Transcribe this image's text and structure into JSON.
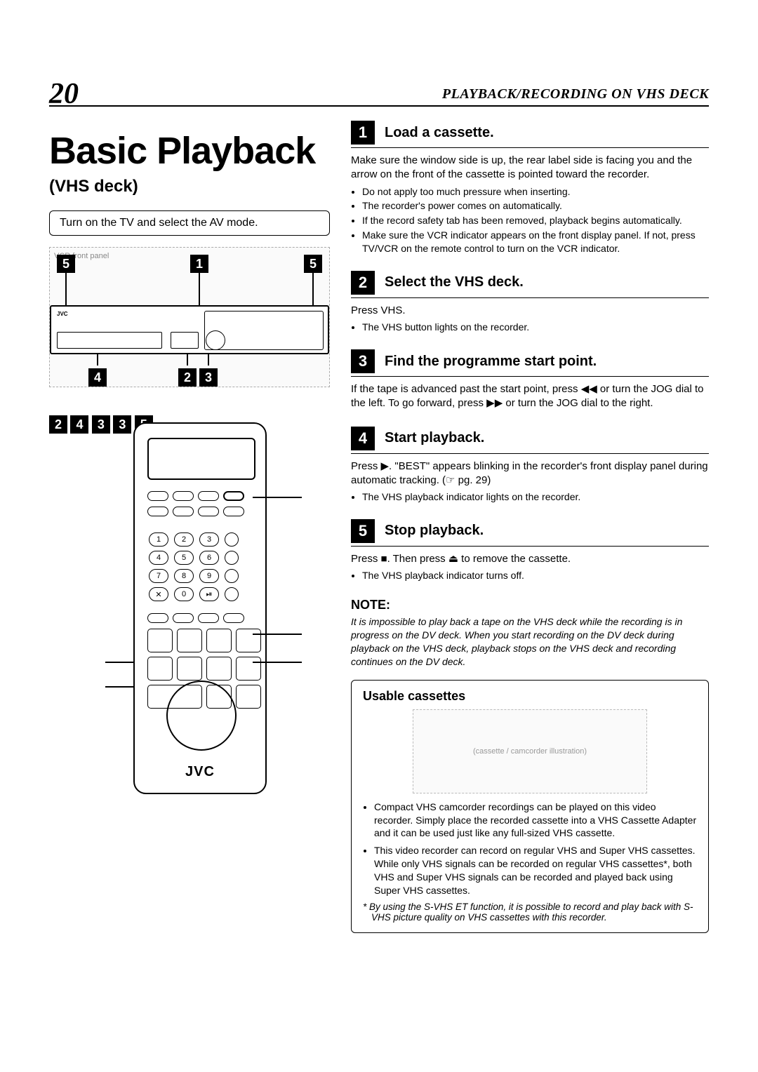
{
  "header": {
    "page_number": "20",
    "section": "PLAYBACK/RECORDING ON VHS DECK"
  },
  "left": {
    "title": "Basic Playback",
    "subtitle": "(VHS deck)",
    "instruction_box": "Turn on the TV and select the AV mode.",
    "vcr_callouts_top": [
      "5",
      "1",
      "5"
    ],
    "vcr_callouts_bottom": [
      "4",
      "2",
      "3"
    ],
    "remote_callouts_right": [
      "2",
      "4",
      "3"
    ],
    "remote_callouts_left": [
      "3",
      "5"
    ],
    "remote_brand": "JVC",
    "keypad": [
      [
        "1",
        "2",
        "3"
      ],
      [
        "4",
        "5",
        "6"
      ],
      [
        "7",
        "8",
        "9"
      ],
      [
        "✕",
        "0",
        "⏯"
      ]
    ]
  },
  "steps": [
    {
      "num": "1",
      "title": "Load a cassette.",
      "body": "Make sure the window side is up, the rear label side is facing you and the arrow on the front of the cassette is pointed toward the recorder.",
      "bullets": [
        "Do not apply too much pressure when inserting.",
        "The recorder's power comes on automatically.",
        "If the record safety tab has been removed, playback begins automatically.",
        "Make sure the VCR indicator appears on the front display panel. If not, press TV/VCR on the remote control to turn on the VCR indicator."
      ]
    },
    {
      "num": "2",
      "title": "Select the VHS deck.",
      "body": "Press VHS.",
      "bullets": [
        "The VHS button lights on the recorder."
      ]
    },
    {
      "num": "3",
      "title": "Find the programme start point.",
      "body": "If the tape is advanced past the start point, press ◀◀ or turn the JOG dial to the left. To go forward, press ▶▶ or turn the JOG dial to the right.",
      "bullets": []
    },
    {
      "num": "4",
      "title": "Start playback.",
      "body": "Press ▶. \"BEST\" appears blinking in the recorder's front display panel during automatic tracking. (☞ pg. 29)",
      "bullets": [
        "The VHS playback indicator lights on the recorder."
      ]
    },
    {
      "num": "5",
      "title": "Stop playback.",
      "body": "Press ■. Then press ⏏ to remove the cassette.",
      "bullets": [
        "The VHS playback indicator turns off."
      ]
    }
  ],
  "note": {
    "title": "NOTE:",
    "body": "It is impossible to play back a tape on the VHS deck while the recording is in progress on the DV deck. When you start recording on the DV deck during playback on the VHS deck, playback stops on the VHS deck and recording continues on the DV deck."
  },
  "usable": {
    "title": "Usable cassettes",
    "illus_label": "(cassette / camcorder illustration)",
    "bullets": [
      "Compact VHS camcorder recordings can be played on this video recorder. Simply place the recorded cassette into a VHS Cassette Adapter and it can be used just like any full-sized VHS cassette.",
      "This video recorder can record on regular VHS and Super VHS cassettes. While only VHS signals can be recorded on regular VHS cassettes*, both VHS and Super VHS signals can be recorded and played back using Super VHS cassettes."
    ],
    "footnote": "* By using the S-VHS ET function, it is possible to record and play back with S-VHS picture quality on VHS cassettes with this recorder."
  }
}
